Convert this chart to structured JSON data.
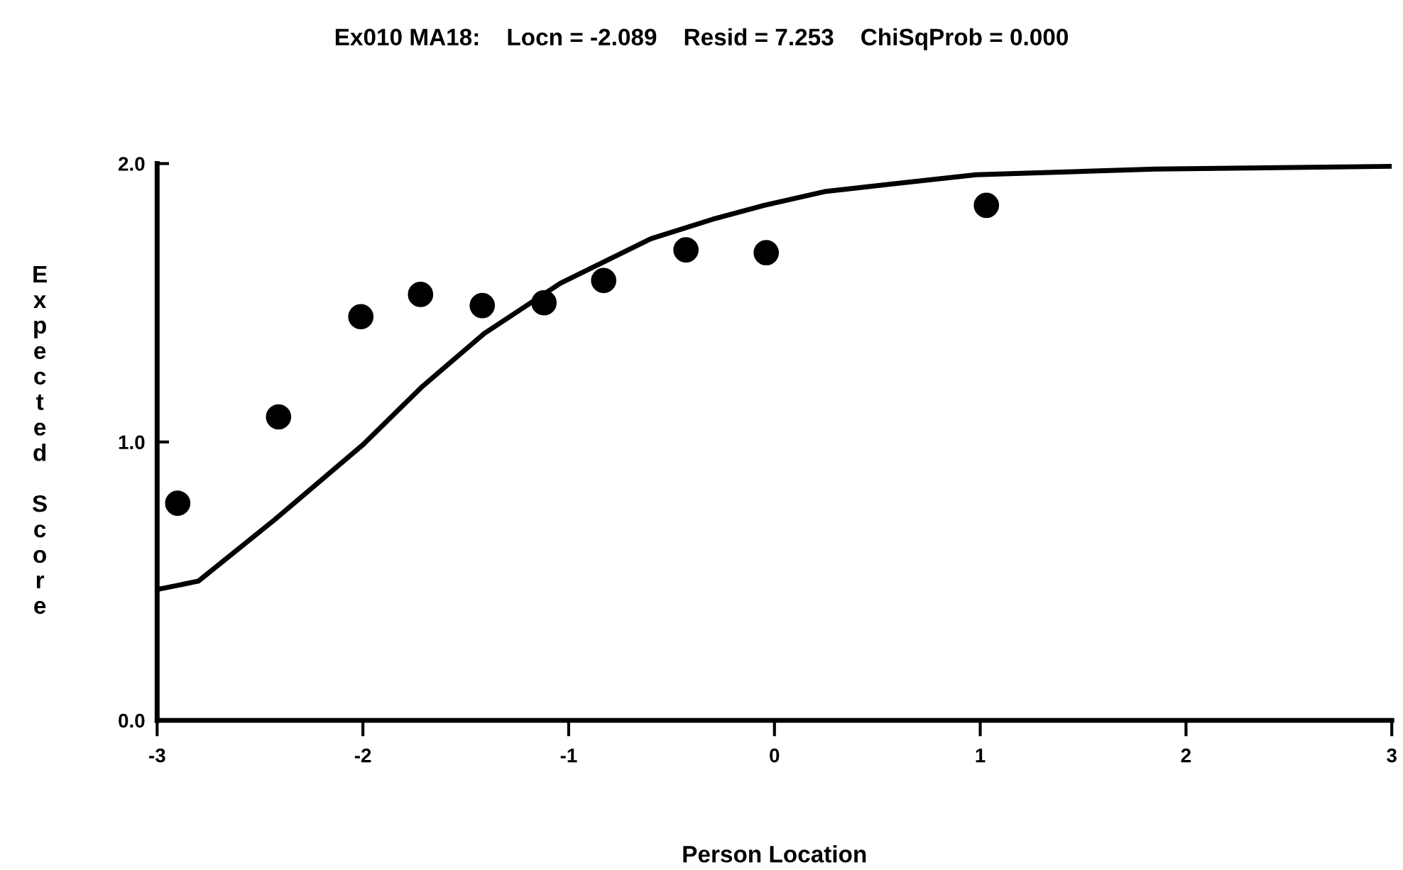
{
  "chart_data": {
    "type": "scatter",
    "title": "Ex010 MA18:    Locn = -2.089    Resid = 7.253    ChiSqProb = 0.000",
    "xlabel": "Person Location",
    "ylabel": "Expected Score",
    "xlim": [
      -3,
      3
    ],
    "ylim": [
      0,
      2
    ],
    "xticks": [
      {
        "value": -3,
        "label": "-3"
      },
      {
        "value": -2,
        "label": "-2"
      },
      {
        "value": -1,
        "label": "-1"
      },
      0,
      1,
      2,
      3
    ],
    "yticks": [
      {
        "value": 0,
        "label": "0.0"
      },
      {
        "value": 1,
        "label": "1.0"
      },
      {
        "value": 2,
        "label": "2.0"
      }
    ],
    "grid": false,
    "legend": false,
    "series": [
      {
        "type": "line",
        "color": "#000000",
        "marker": "none",
        "line_style": "solid",
        "x": [
          -3.0,
          -2.8,
          -2.43,
          -2.0,
          -1.71,
          -1.41,
          -1.04,
          -0.6,
          -0.3,
          -0.05,
          0.25,
          0.98,
          1.85,
          2.99
        ],
        "values": [
          0.47,
          0.5,
          0.72,
          0.99,
          1.2,
          1.39,
          1.57,
          1.73,
          1.8,
          1.85,
          1.9,
          1.96,
          1.98,
          1.99
        ]
      },
      {
        "color": "#000000",
        "marker": "circle",
        "x": [
          -2.9,
          -2.41,
          -2.01,
          -1.72,
          -1.42,
          -1.12,
          -0.83,
          -0.43,
          -0.04,
          1.03
        ],
        "values": [
          0.78,
          1.09,
          1.45,
          1.53,
          1.49,
          1.5,
          1.58,
          1.69,
          1.68,
          1.85
        ]
      }
    ]
  }
}
